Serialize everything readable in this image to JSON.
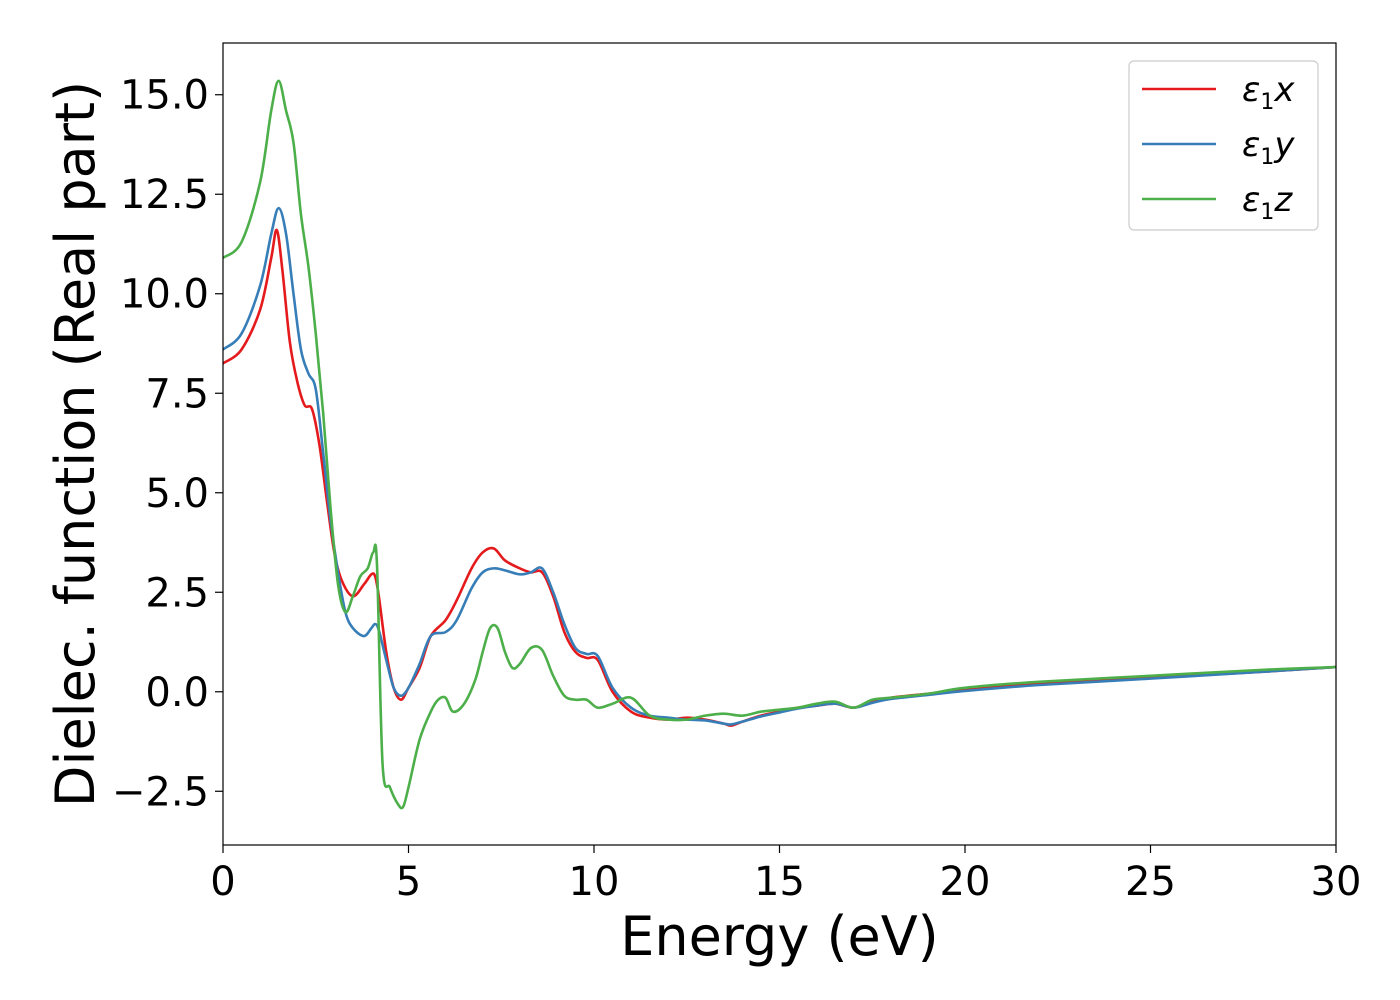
{
  "chart_data": {
    "type": "line",
    "title": "",
    "xlabel": "Energy (eV)",
    "ylabel": "Dielec. function (Real part)",
    "xlim": [
      0,
      30
    ],
    "ylim": [
      -3.85,
      16.3
    ],
    "xticks": [
      0,
      5,
      10,
      15,
      20,
      25,
      30
    ],
    "xtick_labels": [
      "0",
      "5",
      "10",
      "15",
      "20",
      "25",
      "30"
    ],
    "yticks": [
      -2.5,
      0,
      2.5,
      5,
      7.5,
      10,
      12.5,
      15
    ],
    "ytick_labels": [
      "−2.5",
      "0.0",
      "2.5",
      "5.0",
      "7.5",
      "10.0",
      "12.5",
      "15.0"
    ],
    "grid": false,
    "legend_position": "top-right",
    "series": [
      {
        "name": "ε₁x",
        "legend_main": "ε",
        "legend_sub": "1",
        "legend_tail": "x",
        "color": "#e41a1c",
        "x": [
          0,
          0.5,
          1.0,
          1.3,
          1.45,
          1.6,
          1.8,
          2.0,
          2.2,
          2.4,
          2.6,
          2.8,
          3.0,
          3.2,
          3.5,
          3.8,
          4.0,
          4.1,
          4.2,
          4.4,
          4.6,
          4.8,
          5.0,
          5.3,
          5.6,
          6.0,
          6.3,
          6.7,
          7.0,
          7.3,
          7.6,
          8.0,
          8.3,
          8.6,
          8.9,
          9.2,
          9.5,
          9.8,
          10.1,
          10.5,
          11.0,
          11.5,
          12.0,
          12.5,
          13.0,
          13.5,
          13.7,
          14.0,
          14.5,
          15.0,
          15.5,
          16.0,
          16.5,
          17.0,
          17.5,
          18.0,
          19.0,
          20.0,
          22.0,
          25.0,
          28.0,
          30.0
        ],
        "y": [
          8.25,
          8.6,
          9.6,
          10.9,
          11.6,
          10.6,
          8.8,
          7.8,
          7.2,
          7.1,
          6.2,
          4.8,
          3.5,
          2.8,
          2.4,
          2.7,
          2.95,
          2.9,
          2.4,
          1.0,
          0.1,
          -0.2,
          0.1,
          0.6,
          1.4,
          1.8,
          2.3,
          3.1,
          3.5,
          3.6,
          3.3,
          3.1,
          3.0,
          3.0,
          2.4,
          1.5,
          1.0,
          0.85,
          0.8,
          0.0,
          -0.5,
          -0.65,
          -0.7,
          -0.65,
          -0.7,
          -0.8,
          -0.85,
          -0.75,
          -0.6,
          -0.5,
          -0.4,
          -0.35,
          -0.3,
          -0.4,
          -0.25,
          -0.15,
          -0.05,
          0.05,
          0.2,
          0.35,
          0.5,
          0.62
        ]
      },
      {
        "name": "ε₁y",
        "legend_main": "ε",
        "legend_sub": "1",
        "legend_tail": "y",
        "color": "#377eb8",
        "x": [
          0,
          0.5,
          1.0,
          1.3,
          1.5,
          1.7,
          1.9,
          2.1,
          2.3,
          2.5,
          2.7,
          2.9,
          3.1,
          3.3,
          3.5,
          3.8,
          4.0,
          4.1,
          4.2,
          4.4,
          4.6,
          4.8,
          5.0,
          5.3,
          5.6,
          6.0,
          6.3,
          6.7,
          7.0,
          7.3,
          7.6,
          8.0,
          8.3,
          8.6,
          8.9,
          9.2,
          9.5,
          9.8,
          10.1,
          10.5,
          11.0,
          11.5,
          12.0,
          12.5,
          13.0,
          13.5,
          13.7,
          14.0,
          14.5,
          15.0,
          15.5,
          16.0,
          16.5,
          17.0,
          17.5,
          18.0,
          19.0,
          20.0,
          22.0,
          25.0,
          28.0,
          30.0
        ],
        "y": [
          8.6,
          9.0,
          10.2,
          11.5,
          12.15,
          11.5,
          10.0,
          8.6,
          8.0,
          7.6,
          6.0,
          4.3,
          3.0,
          2.0,
          1.6,
          1.4,
          1.6,
          1.7,
          1.55,
          0.8,
          0.1,
          -0.1,
          0.1,
          0.7,
          1.4,
          1.5,
          1.8,
          2.6,
          3.0,
          3.1,
          3.05,
          2.95,
          3.0,
          3.1,
          2.5,
          1.7,
          1.1,
          0.95,
          0.9,
          0.1,
          -0.4,
          -0.6,
          -0.65,
          -0.7,
          -0.72,
          -0.8,
          -0.82,
          -0.75,
          -0.62,
          -0.52,
          -0.42,
          -0.35,
          -0.3,
          -0.4,
          -0.28,
          -0.18,
          -0.08,
          0.02,
          0.17,
          0.33,
          0.5,
          0.62
        ]
      },
      {
        "name": "ε₁z",
        "legend_main": "ε",
        "legend_sub": "1",
        "legend_tail": "z",
        "color": "#4daf4a",
        "x": [
          0,
          0.5,
          1.0,
          1.3,
          1.5,
          1.7,
          1.9,
          2.1,
          2.3,
          2.5,
          2.7,
          2.9,
          3.1,
          3.3,
          3.5,
          3.7,
          3.9,
          4.05,
          4.15,
          4.3,
          4.5,
          4.7,
          4.85,
          5.0,
          5.3,
          5.6,
          5.8,
          6.0,
          6.2,
          6.5,
          6.8,
          7.0,
          7.2,
          7.4,
          7.6,
          7.8,
          8.0,
          8.3,
          8.6,
          8.9,
          9.2,
          9.5,
          9.8,
          10.1,
          10.5,
          11.0,
          11.5,
          12.0,
          12.5,
          13.0,
          13.5,
          14.0,
          14.5,
          15.0,
          15.5,
          16.0,
          16.5,
          17.0,
          17.5,
          18.0,
          19.0,
          20.0,
          22.0,
          25.0,
          28.0,
          30.0
        ],
        "y": [
          10.9,
          11.3,
          12.8,
          14.6,
          15.35,
          14.6,
          13.8,
          12.0,
          10.7,
          9.0,
          7.0,
          4.6,
          2.7,
          2.0,
          2.4,
          2.9,
          3.1,
          3.5,
          3.2,
          -1.8,
          -2.4,
          -2.8,
          -2.9,
          -2.4,
          -1.2,
          -0.5,
          -0.2,
          -0.15,
          -0.5,
          -0.3,
          0.3,
          1.0,
          1.6,
          1.6,
          1.0,
          0.6,
          0.7,
          1.1,
          1.05,
          0.4,
          -0.1,
          -0.2,
          -0.2,
          -0.4,
          -0.3,
          -0.15,
          -0.6,
          -0.7,
          -0.7,
          -0.6,
          -0.55,
          -0.6,
          -0.5,
          -0.45,
          -0.4,
          -0.3,
          -0.25,
          -0.4,
          -0.2,
          -0.15,
          -0.05,
          0.1,
          0.25,
          0.4,
          0.55,
          0.62
        ]
      }
    ]
  }
}
